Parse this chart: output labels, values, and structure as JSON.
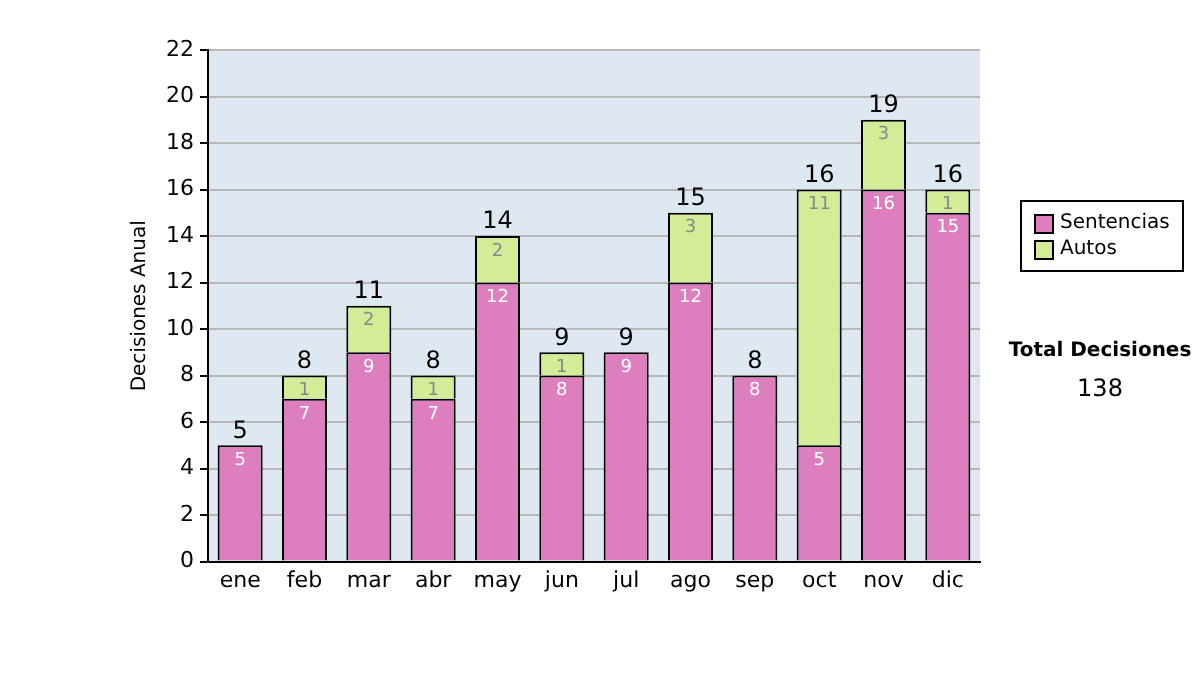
{
  "chart_data": {
    "type": "bar",
    "stacked": true,
    "ylabel": "Decisiones Anual",
    "categories": [
      "ene",
      "feb",
      "mar",
      "abr",
      "may",
      "jun",
      "jul",
      "ago",
      "sep",
      "oct",
      "nov",
      "dic"
    ],
    "series": [
      {
        "name": "Sentencias",
        "color": "#dd7fbf",
        "values": [
          5,
          7,
          9,
          7,
          12,
          8,
          9,
          12,
          8,
          5,
          16,
          15
        ]
      },
      {
        "name": "Autos",
        "color": "#d4eb98",
        "values": [
          null,
          1,
          2,
          1,
          2,
          1,
          null,
          3,
          null,
          11,
          3,
          1
        ]
      }
    ],
    "totals": [
      "5",
      "8",
      "11",
      "8",
      "14",
      "9",
      "9",
      "15",
      "8",
      "16",
      "19",
      "16"
    ],
    "data_labels": true,
    "ylim": [
      0,
      22
    ],
    "yticks": [
      0,
      2,
      4,
      6,
      8,
      10,
      12,
      14,
      16,
      18,
      20,
      22
    ],
    "grid": "y",
    "legend": "right",
    "annotations": [
      "Total Decisiones",
      "138"
    ]
  }
}
